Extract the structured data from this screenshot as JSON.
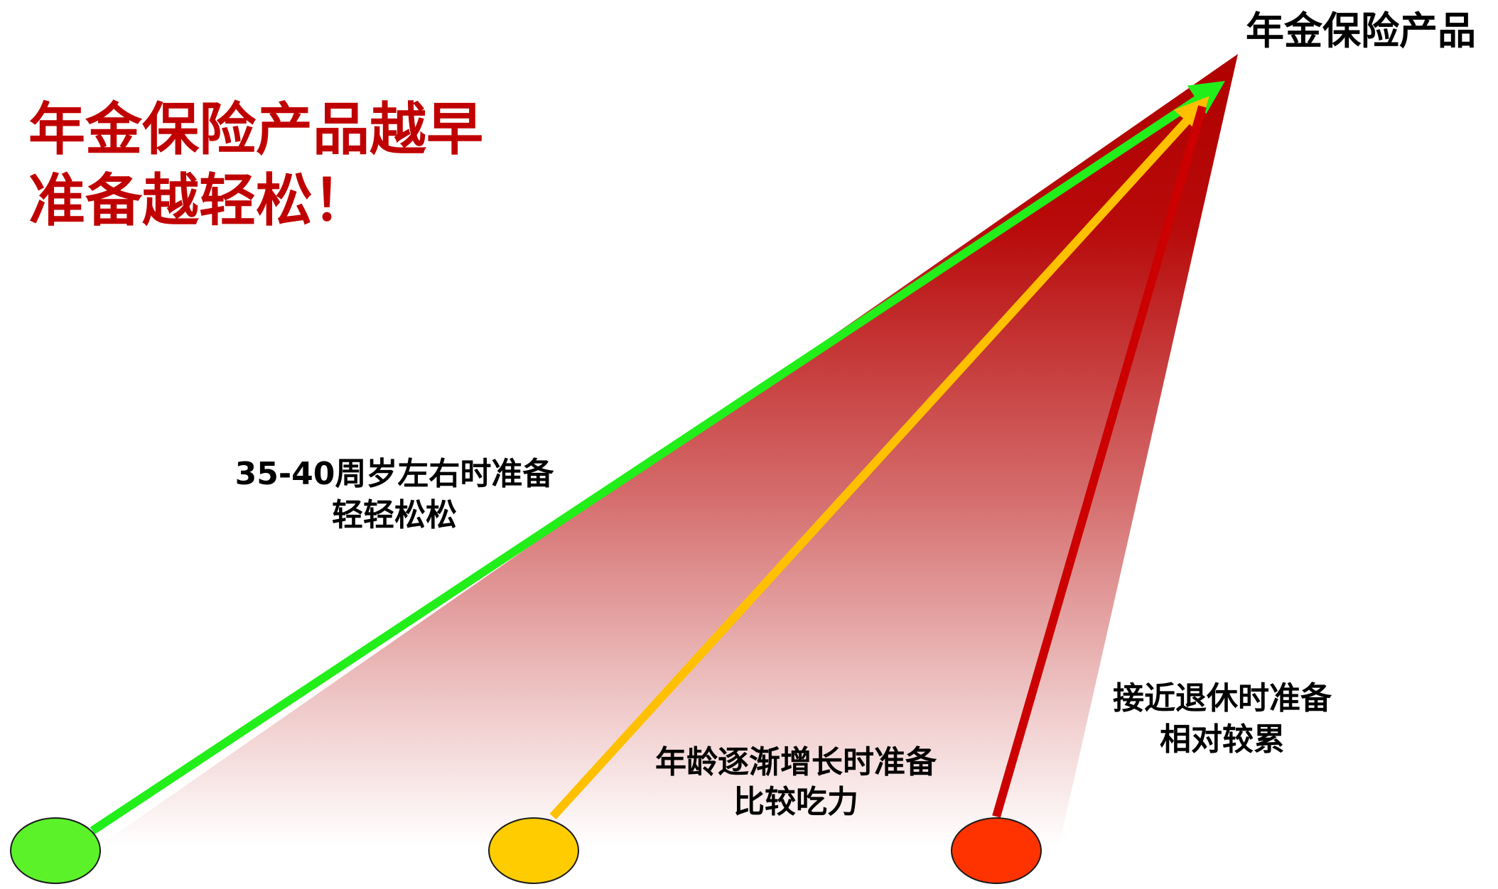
{
  "title": {
    "line1": "年金保险产品越早",
    "line2": "准备越轻松！"
  },
  "peak_label": "年金保险产品",
  "paths": [
    {
      "key": "early",
      "label_line1": "35-40周岁左右时准备",
      "label_line2": "轻轻松松",
      "arrow_color": "#22ee1a",
      "dot_color": "#5cf22a"
    },
    {
      "key": "middle",
      "label_line1": "年龄逐渐增长时准备",
      "label_line2": "比较吃力",
      "arrow_color": "#ffc000",
      "dot_color": "#ffcc00"
    },
    {
      "key": "late",
      "label_line1": "接近退休时准备",
      "label_line2": "相对较累",
      "arrow_color": "#cc0000",
      "dot_color": "#ff3300"
    }
  ],
  "colors": {
    "title": "#c00000",
    "wedge_top": "#b00000",
    "wedge_bottom": "#ffffff"
  }
}
